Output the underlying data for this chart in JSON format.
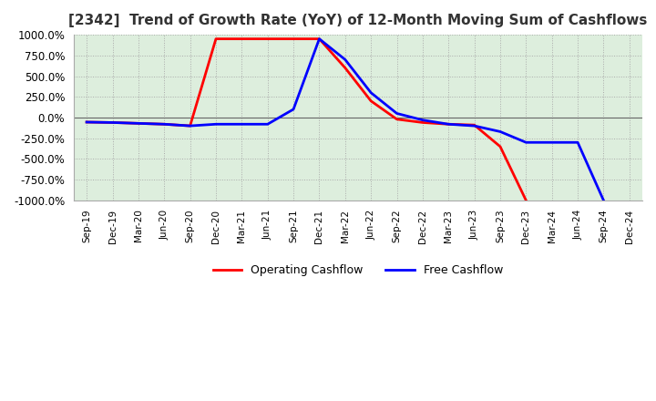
{
  "title": "[2342]  Trend of Growth Rate (YoY) of 12-Month Moving Sum of Cashflows",
  "ylim": [
    -1000,
    1000
  ],
  "yticks": [
    1000,
    750,
    500,
    250,
    0,
    -250,
    -500,
    -750,
    -1000
  ],
  "ytick_labels": [
    "1000.0%",
    "750.0%",
    "500.0%",
    "250.0%",
    "0.0%",
    "-250.0%",
    "-500.0%",
    "-750.0%",
    "-1000.0%"
  ],
  "x_labels": [
    "Sep-19",
    "Dec-19",
    "Mar-20",
    "Jun-20",
    "Sep-20",
    "Dec-20",
    "Mar-21",
    "Jun-21",
    "Sep-21",
    "Dec-21",
    "Mar-22",
    "Jun-22",
    "Sep-22",
    "Dec-22",
    "Mar-23",
    "Jun-23",
    "Sep-23",
    "Dec-23",
    "Mar-24",
    "Jun-24",
    "Sep-24",
    "Dec-24"
  ],
  "operating_cashflow": [
    -55,
    -60,
    -70,
    -80,
    -100,
    950,
    950,
    950,
    950,
    950,
    600,
    200,
    -20,
    -60,
    -80,
    -90,
    -350,
    -1000,
    null,
    null,
    null,
    null
  ],
  "free_cashflow": [
    -55,
    -60,
    -70,
    -80,
    -100,
    -80,
    -80,
    -80,
    100,
    950,
    700,
    300,
    50,
    -30,
    -80,
    -100,
    -170,
    -300,
    -300,
    -300,
    -1000,
    null
  ],
  "op_color": "#ff0000",
  "fc_color": "#0000ff",
  "grid_color": "#aaaaaa",
  "grid_style": "dotted",
  "background_color": "#ddeedd",
  "legend_labels": [
    "Operating Cashflow",
    "Free Cashflow"
  ],
  "title_color": "#333333",
  "title_fontsize": 11
}
